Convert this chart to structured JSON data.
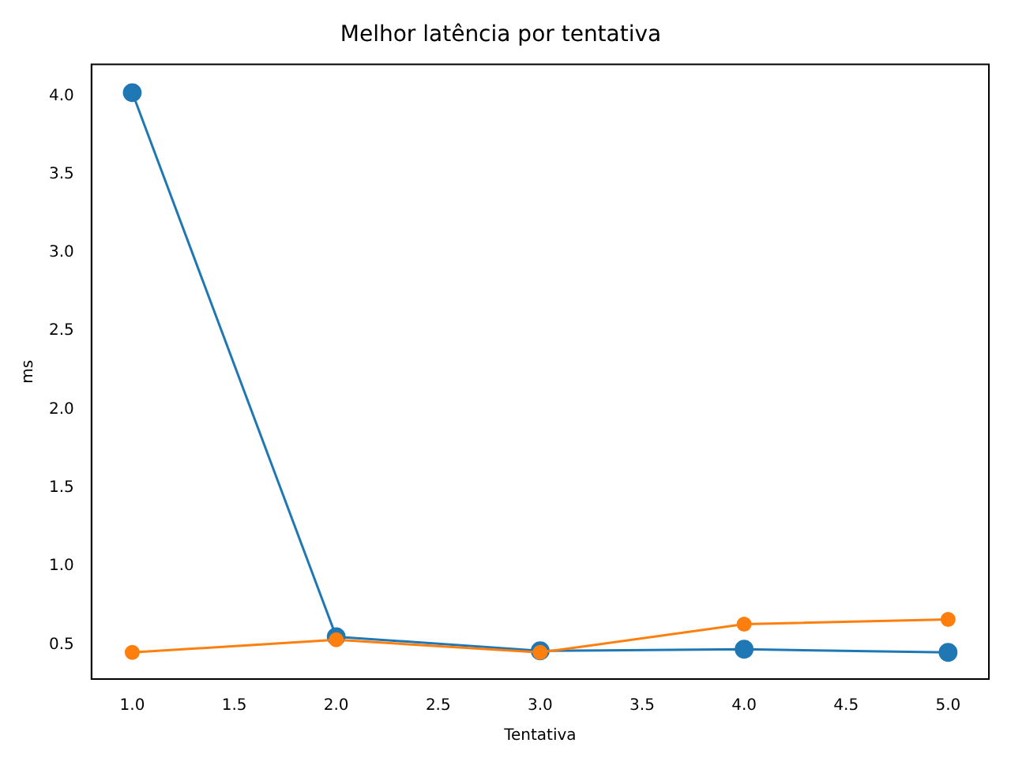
{
  "chart_data": {
    "type": "line",
    "title": "Melhor latência por tentativa",
    "xlabel": "Tentativa",
    "ylabel": "ms",
    "x": [
      1,
      2,
      3,
      4,
      5
    ],
    "series": [
      {
        "color": "#1f77b4",
        "values": [
          4.02,
          0.55,
          0.46,
          0.47,
          0.45
        ]
      },
      {
        "color": "#ff7f0e",
        "values": [
          0.45,
          0.53,
          0.45,
          0.63,
          0.66
        ]
      }
    ],
    "xlim": [
      0.8,
      5.2
    ],
    "xticks": [
      {
        "value": 1,
        "label": "1.0"
      },
      {
        "value": 1.5,
        "label": "1.5"
      },
      {
        "value": 2,
        "label": "2.0"
      },
      {
        "value": 2.5,
        "label": "2.5"
      },
      {
        "value": 3,
        "label": "3.0"
      },
      {
        "value": 3.5,
        "label": "3.5"
      },
      {
        "value": 4,
        "label": "4.0"
      },
      {
        "value": 4.5,
        "label": "4.5"
      },
      {
        "value": 5,
        "label": "5.0"
      }
    ],
    "ylim": [
      0.28,
      4.2
    ],
    "yticks": [
      {
        "value": 0.5,
        "label": "0.5"
      },
      {
        "value": 1,
        "label": "1.0"
      },
      {
        "value": 1.5,
        "label": "1.5"
      },
      {
        "value": 2,
        "label": "2.0"
      },
      {
        "value": 2.5,
        "label": "2.5"
      },
      {
        "value": 3,
        "label": "3.0"
      },
      {
        "value": 3.5,
        "label": "3.5"
      },
      {
        "value": 4,
        "label": "4.0"
      }
    ],
    "grid": false,
    "legend": false,
    "marker": "circle",
    "line_style": "solid"
  }
}
